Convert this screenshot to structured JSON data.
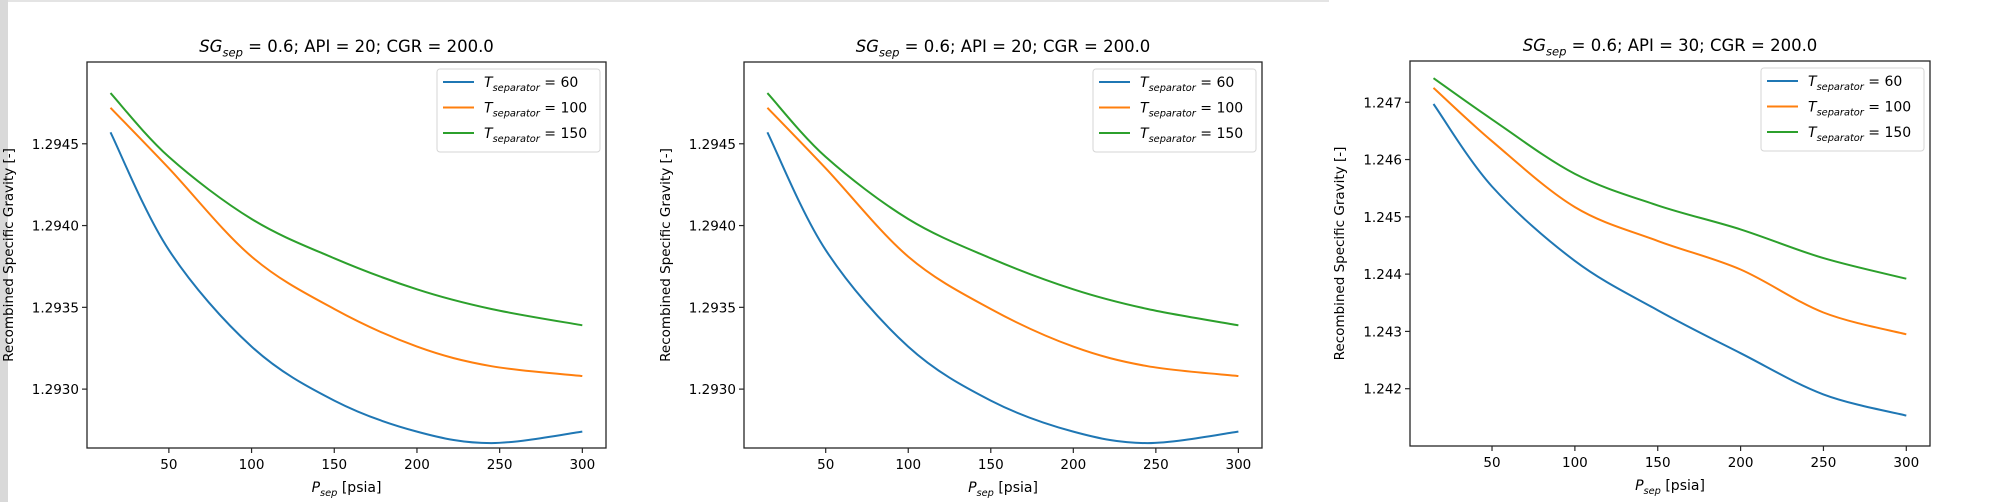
{
  "chart_data": [
    {
      "type": "line",
      "title": "SG_sep = 0.6;  API = 20;  CGR = 200.0",
      "title_parts": {
        "base": "SG",
        "sub": "sep",
        "rest": " = 0.6;  API = 20;  CGR = 200.0"
      },
      "xlabel": "P_sep [psia]",
      "xlabel_parts": {
        "base": "P",
        "sub": "sep",
        "rest": " [psia]"
      },
      "ylabel": "Recombined Specific Gravity [-]",
      "xlim": [
        0.5,
        314.3
      ],
      "ylim": [
        1.29264,
        1.295
      ],
      "xticks": [
        50,
        100,
        150,
        200,
        250,
        300
      ],
      "yticks": [
        1.293,
        1.2935,
        1.294,
        1.2945
      ],
      "ytick_labels": [
        "1.2930",
        "1.2935",
        "1.2940",
        "1.2945"
      ],
      "grid": false,
      "legend_position": "upper right",
      "x": [
        14.7,
        50,
        100,
        150,
        200,
        245,
        300
      ],
      "series": [
        {
          "name": "T_separator = 60",
          "legend": {
            "base": "T",
            "sub": "separator",
            "rest": " = 60"
          },
          "color": "#1f77b4",
          "values": [
            1.29457,
            1.29385,
            1.29326,
            1.29293,
            1.29274,
            1.29267,
            1.29274
          ]
        },
        {
          "name": "T_separator = 100",
          "legend": {
            "base": "T",
            "sub": "separator",
            "rest": " = 100"
          },
          "color": "#ff7f0e",
          "values": [
            1.29472,
            1.29435,
            1.29381,
            1.29349,
            1.29326,
            1.29314,
            1.29308
          ]
        },
        {
          "name": "T_separator = 150",
          "legend": {
            "base": "T",
            "sub": "separator",
            "rest": " = 150"
          },
          "color": "#2ca02c",
          "values": [
            1.29481,
            1.29442,
            1.29404,
            1.2938,
            1.29361,
            1.29349,
            1.29339
          ]
        }
      ]
    },
    {
      "type": "line",
      "title": "SG_sep = 0.6;  API = 20;  CGR = 200.0",
      "title_parts": {
        "base": "SG",
        "sub": "sep",
        "rest": " = 0.6;  API = 20;  CGR = 200.0"
      },
      "xlabel": "P_sep [psia]",
      "xlabel_parts": {
        "base": "P",
        "sub": "sep",
        "rest": " [psia]"
      },
      "ylabel": "Recombined Specific Gravity [-]",
      "xlim": [
        0.5,
        314.3
      ],
      "ylim": [
        1.29264,
        1.295
      ],
      "xticks": [
        50,
        100,
        150,
        200,
        250,
        300
      ],
      "yticks": [
        1.293,
        1.2935,
        1.294,
        1.2945
      ],
      "ytick_labels": [
        "1.2930",
        "1.2935",
        "1.2940",
        "1.2945"
      ],
      "grid": false,
      "legend_position": "upper right",
      "x": [
        14.7,
        50,
        100,
        150,
        200,
        245,
        300
      ],
      "series": [
        {
          "name": "T_separator = 60",
          "legend": {
            "base": "T",
            "sub": "separator",
            "rest": " = 60"
          },
          "color": "#1f77b4",
          "values": [
            1.29457,
            1.29385,
            1.29326,
            1.29293,
            1.29274,
            1.29267,
            1.29274
          ]
        },
        {
          "name": "T_separator = 100",
          "legend": {
            "base": "T",
            "sub": "separator",
            "rest": " = 100"
          },
          "color": "#ff7f0e",
          "values": [
            1.29472,
            1.29435,
            1.29381,
            1.29349,
            1.29326,
            1.29314,
            1.29308
          ]
        },
        {
          "name": "T_separator = 150",
          "legend": {
            "base": "T",
            "sub": "separator",
            "rest": " = 150"
          },
          "color": "#2ca02c",
          "values": [
            1.29481,
            1.29442,
            1.29404,
            1.2938,
            1.29361,
            1.29349,
            1.29339
          ]
        }
      ]
    },
    {
      "type": "line",
      "title": "SG_sep = 0.6;  API = 30;  CGR = 200.0",
      "title_parts": {
        "base": "SG",
        "sub": "sep",
        "rest": " = 0.6;  API = 30;  CGR = 200.0"
      },
      "xlabel": "P_sep [psia]",
      "xlabel_parts": {
        "base": "P",
        "sub": "sep",
        "rest": " [psia]"
      },
      "ylabel": "Recombined Specific Gravity [-]",
      "xlim": [
        0.5,
        314.3
      ],
      "ylim": [
        1.241,
        1.24772
      ],
      "xticks": [
        50,
        100,
        150,
        200,
        250,
        300
      ],
      "yticks": [
        1.242,
        1.243,
        1.244,
        1.245,
        1.246,
        1.247
      ],
      "ytick_labels": [
        "1.242",
        "1.243",
        "1.244",
        "1.245",
        "1.246",
        "1.247"
      ],
      "grid": false,
      "legend_position": "upper right",
      "x": [
        14.7,
        50,
        100,
        150,
        200,
        250,
        300
      ],
      "series": [
        {
          "name": "T_separator = 60",
          "legend": {
            "base": "T",
            "sub": "separator",
            "rest": " = 60"
          },
          "color": "#1f77b4",
          "values": [
            1.24697,
            1.24553,
            1.24423,
            1.24337,
            1.24262,
            1.2419,
            1.24153
          ]
        },
        {
          "name": "T_separator = 100",
          "legend": {
            "base": "T",
            "sub": "separator",
            "rest": " = 100"
          },
          "color": "#ff7f0e",
          "values": [
            1.24725,
            1.24632,
            1.24517,
            1.24458,
            1.24408,
            1.24333,
            1.24295
          ]
        },
        {
          "name": "T_separator = 150",
          "legend": {
            "base": "T",
            "sub": "separator",
            "rest": " = 150"
          },
          "color": "#2ca02c",
          "values": [
            1.24742,
            1.2467,
            1.24575,
            1.2452,
            1.24478,
            1.24428,
            1.24392
          ]
        }
      ]
    }
  ],
  "layout": {
    "figures": [
      {
        "frame": [
          87,
          62,
          606,
          448
        ]
      },
      {
        "frame": [
          744,
          62,
          1262,
          448
        ]
      },
      {
        "frame": [
          1410,
          61,
          1930,
          446
        ]
      }
    ]
  }
}
